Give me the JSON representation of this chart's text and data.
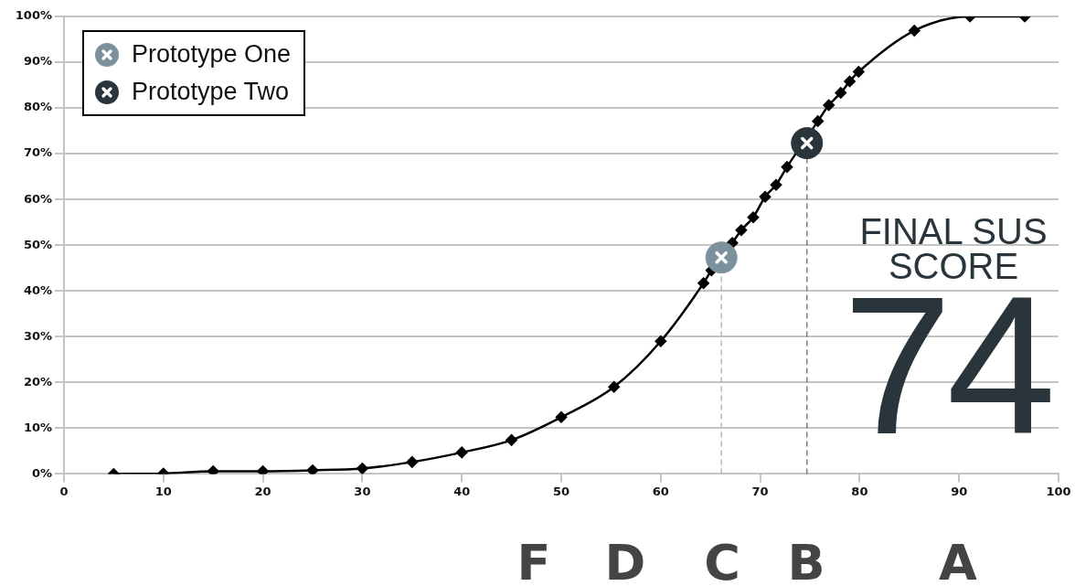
{
  "chart_data": {
    "type": "line",
    "x": [
      5,
      10,
      15,
      20,
      25,
      30,
      35,
      40,
      45,
      50,
      55.3,
      60,
      64.3,
      65.1,
      67.2,
      68.1,
      69.3,
      70.5,
      71.6,
      72.7,
      75.8,
      76.9,
      78.1,
      79,
      79.9,
      85.5,
      91.1,
      96.6
    ],
    "series": [
      {
        "color": "#000000",
        "marker": "diamond",
        "values": [
          0,
          0.1,
          0.6,
          0.6,
          0.8,
          1.2,
          2.6,
          4.7,
          7.4,
          12.4,
          19,
          29,
          41.7,
          44.5,
          50.5,
          53.3,
          56.1,
          60.6,
          63.2,
          67.1,
          77.1,
          80.6,
          83.3,
          85.8,
          87.9,
          96.9,
          100,
          100
        ]
      },
      {
        "type": "scatter",
        "name": "Prototype One",
        "color": "#7b929e",
        "marker": "circle",
        "x": [
          66.1
        ],
        "values": [
          47.3
        ]
      },
      {
        "type": "scatter",
        "name": "Prototype Two",
        "color": "#2a353b",
        "marker": "circle",
        "x": [
          74.7
        ],
        "values": [
          72.3
        ]
      }
    ],
    "xlim": [
      0,
      100
    ],
    "xticks": [
      0,
      10,
      20,
      30,
      40,
      50,
      60,
      70,
      80,
      90,
      100
    ],
    "ylim": [
      0,
      100
    ],
    "yticks": [
      {
        "value": 0,
        "label": "0%"
      },
      {
        "value": 10,
        "label": "10%"
      },
      {
        "value": 20,
        "label": "20%"
      },
      {
        "value": 30,
        "label": "30%"
      },
      {
        "value": 40,
        "label": "40%"
      },
      {
        "value": 50,
        "label": "50%"
      },
      {
        "value": 60,
        "label": "60%"
      },
      {
        "value": 70,
        "label": "70%"
      },
      {
        "value": 80,
        "label": "80%"
      },
      {
        "value": 90,
        "label": "90%"
      },
      {
        "value": 100,
        "label": "100%"
      }
    ],
    "ref_lines": [
      {
        "axis": "x",
        "value": 66.1,
        "color": "#a9bcc6",
        "line_style": "dashed"
      },
      {
        "axis": "x",
        "value": 74.7,
        "color": "#7d7d7d",
        "line_style": "dashed"
      }
    ],
    "annotations": [
      "FINAL SUS SCORE",
      "74",
      "F",
      "D",
      "C",
      "B",
      "A"
    ],
    "grid": "y",
    "legend": "top left",
    "line_style": "solid"
  }
}
